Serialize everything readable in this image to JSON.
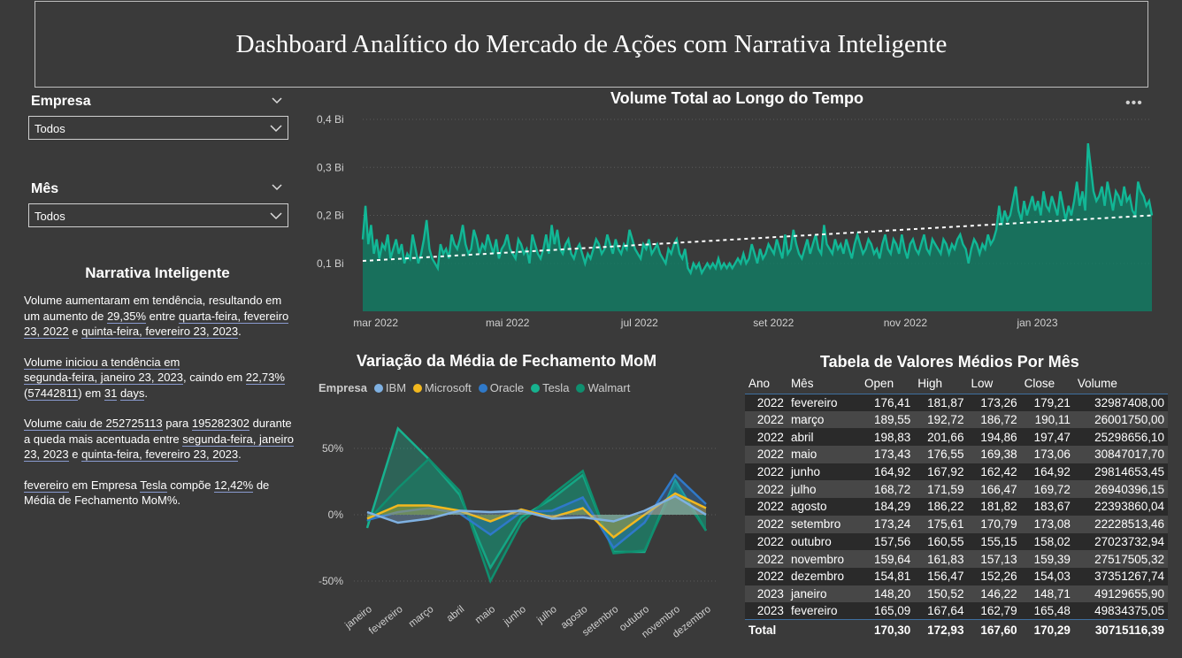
{
  "header": {
    "title": "Dashboard Analítico do Mercado de Ações com Narrativa Inteligente"
  },
  "slicers": [
    {
      "label": "Empresa",
      "value": "Todos"
    },
    {
      "label": "Mês",
      "value": "Todos"
    }
  ],
  "narrative": {
    "title": "Narrativa Inteligente",
    "p1": {
      "a": "Volume aumentaram em tendência, resultando em um aumento de ",
      "pct": "29,35%",
      "b": " entre ",
      "d1": "quarta-feira, fevereiro 23, 2022",
      "c": " e ",
      "d2": "quinta-feira, fevereiro 23, 2023",
      "d": "."
    },
    "p2": {
      "a": "Volume iniciou a tendência em",
      "d1": "segunda-feira, janeiro 23, 2023",
      "b": ", caindo em ",
      "pct": "22,73%",
      "c": " (",
      "abs": "57442811",
      "d": ") em ",
      "n": "31",
      "e": " ",
      "days": "days",
      "f": "."
    },
    "p3": {
      "a": "Volume caiu de ",
      "v1": "252725113",
      "b": " para ",
      "v2": "195282302",
      "c": " durante a queda mais acentuada entre ",
      "d1": "segunda-feira, janeiro 23, 2023",
      "d": " e ",
      "d2": "quinta-feira, fevereiro 23, 2023",
      "e": "."
    },
    "p4": {
      "m": "fevereiro",
      "a": " em Empresa ",
      "co": "Tesla",
      "b": " compõe ",
      "pct": "12,42%",
      "c": " de Média de Fechamento MoM%."
    }
  },
  "colors": {
    "teal": "#12b796",
    "ibm": "#7fb1e2",
    "microsoft": "#f2b81e",
    "oracle": "#2f79c9",
    "tesla": "#17b28f",
    "walmart": "#0f8f6f"
  },
  "chart_data": [
    {
      "type": "area",
      "title": "Volume Total ao Longo do Tempo",
      "x_ticks": [
        "mar 2022",
        "mai 2022",
        "jul 2022",
        "set 2022",
        "nov 2022",
        "jan 2023"
      ],
      "y_ticks": [
        "0,1 Bi",
        "0,2 Bi",
        "0,3 Bi",
        "0,4 Bi"
      ],
      "ylim": [
        0,
        0.4
      ],
      "y_unit": "Bi",
      "x_range": [
        "2022-02-23",
        "2023-02-23"
      ],
      "trend_line": [
        0.105,
        0.2
      ],
      "values": [
        0.15,
        0.22,
        0.14,
        0.18,
        0.12,
        0.15,
        0.11,
        0.14,
        0.13,
        0.16,
        0.11,
        0.13,
        0.15,
        0.12,
        0.14,
        0.1,
        0.12,
        0.11,
        0.16,
        0.13,
        0.1,
        0.12,
        0.15,
        0.19,
        0.13,
        0.11,
        0.1,
        0.09,
        0.14,
        0.12,
        0.13,
        0.11,
        0.16,
        0.14,
        0.13,
        0.15,
        0.18,
        0.14,
        0.12,
        0.13,
        0.17,
        0.15,
        0.12,
        0.14,
        0.13,
        0.16,
        0.14,
        0.12,
        0.15,
        0.11,
        0.13,
        0.14,
        0.16,
        0.13,
        0.12,
        0.11,
        0.15,
        0.14,
        0.12,
        0.13,
        0.1,
        0.16,
        0.14,
        0.12,
        0.11,
        0.13,
        0.16,
        0.12,
        0.18,
        0.14,
        0.17,
        0.13,
        0.12,
        0.14,
        0.15,
        0.12,
        0.11,
        0.13,
        0.14,
        0.12,
        0.1,
        0.12,
        0.11,
        0.13,
        0.15,
        0.14,
        0.12,
        0.13,
        0.16,
        0.14,
        0.12,
        0.15,
        0.13,
        0.12,
        0.14,
        0.13,
        0.17,
        0.15,
        0.13,
        0.12,
        0.11,
        0.14,
        0.13,
        0.15,
        0.12,
        0.13,
        0.14,
        0.12,
        0.11,
        0.1,
        0.13,
        0.12,
        0.14,
        0.15,
        0.12,
        0.11,
        0.13,
        0.09,
        0.08,
        0.1,
        0.09,
        0.1,
        0.08,
        0.09,
        0.1,
        0.09,
        0.1,
        0.09,
        0.11,
        0.09,
        0.1,
        0.09,
        0.1,
        0.09,
        0.1,
        0.11,
        0.1,
        0.12,
        0.1,
        0.11,
        0.14,
        0.12,
        0.1,
        0.13,
        0.11,
        0.12,
        0.14,
        0.13,
        0.12,
        0.15,
        0.13,
        0.11,
        0.16,
        0.12,
        0.13,
        0.17,
        0.14,
        0.12,
        0.11,
        0.13,
        0.15,
        0.12,
        0.14,
        0.16,
        0.13,
        0.12,
        0.18,
        0.14,
        0.13,
        0.12,
        0.15,
        0.13,
        0.14,
        0.12,
        0.15,
        0.13,
        0.11,
        0.14,
        0.16,
        0.14,
        0.12,
        0.13,
        0.15,
        0.14,
        0.12,
        0.13,
        0.11,
        0.14,
        0.16,
        0.13,
        0.12,
        0.15,
        0.14,
        0.12,
        0.16,
        0.13,
        0.11,
        0.14,
        0.15,
        0.13,
        0.12,
        0.14,
        0.16,
        0.13,
        0.12,
        0.15,
        0.14,
        0.13,
        0.12,
        0.15,
        0.14,
        0.12,
        0.14,
        0.13,
        0.15,
        0.16,
        0.14,
        0.13,
        0.1,
        0.13,
        0.15,
        0.14,
        0.12,
        0.14,
        0.13,
        0.16,
        0.14,
        0.15,
        0.17,
        0.22,
        0.18,
        0.21,
        0.19,
        0.2,
        0.23,
        0.26,
        0.21,
        0.19,
        0.23,
        0.2,
        0.22,
        0.24,
        0.21,
        0.23,
        0.2,
        0.25,
        0.22,
        0.21,
        0.24,
        0.22,
        0.2,
        0.25,
        0.22,
        0.19,
        0.22,
        0.2,
        0.23,
        0.27,
        0.22,
        0.25,
        0.21,
        0.35,
        0.3,
        0.25,
        0.23,
        0.24,
        0.26,
        0.22,
        0.27,
        0.24,
        0.21,
        0.25,
        0.24,
        0.22,
        0.26,
        0.23,
        0.24,
        0.21,
        0.2,
        0.27,
        0.25,
        0.24,
        0.22,
        0.23,
        0.2
      ]
    },
    {
      "type": "area",
      "title": "Variação da Média de Fechamento MoM",
      "legend_title": "Empresa",
      "categories": [
        "janeiro",
        "fevereiro",
        "março",
        "abril",
        "maio",
        "junho",
        "julho",
        "agosto",
        "setembro",
        "outubro",
        "novembro",
        "dezembro"
      ],
      "y_ticks": [
        "50%",
        "0%",
        "-50%"
      ],
      "ylim": [
        -0.62,
        0.68
      ],
      "series": [
        {
          "name": "IBM",
          "values": [
            0.02,
            -0.06,
            -0.03,
            0.03,
            0.02,
            0.03,
            -0.03,
            -0.02,
            -0.05,
            0.03,
            0.14,
            0.0
          ]
        },
        {
          "name": "Microsoft",
          "values": [
            -0.03,
            0.07,
            0.07,
            0.03,
            -0.05,
            0.04,
            -0.02,
            0.05,
            -0.17,
            0.0,
            0.16,
            0.05
          ]
        },
        {
          "name": "Oracle",
          "values": [
            -0.04,
            0.02,
            0.05,
            0.01,
            -0.15,
            0.02,
            0.03,
            0.13,
            -0.25,
            -0.06,
            0.3,
            0.08
          ]
        },
        {
          "name": "Tesla",
          "values": [
            -0.1,
            0.65,
            0.42,
            0.15,
            -0.4,
            -0.02,
            0.12,
            0.3,
            -0.28,
            -0.28,
            0.26,
            -0.12
          ]
        },
        {
          "name": "Walmart",
          "values": [
            -0.05,
            0.2,
            0.42,
            0.18,
            -0.5,
            -0.06,
            0.15,
            0.33,
            -0.29,
            -0.27,
            0.23,
            -0.12
          ]
        }
      ]
    },
    {
      "type": "table",
      "title": "Tabela de Valores Médios Por Mês",
      "columns": [
        "Ano",
        "Mês",
        "Open",
        "High",
        "Low",
        "Close",
        "Volume"
      ],
      "rows": [
        [
          "2022",
          "fevereiro",
          "176,41",
          "181,87",
          "173,26",
          "179,21",
          "32987408,00"
        ],
        [
          "2022",
          "março",
          "189,55",
          "192,72",
          "186,72",
          "190,11",
          "26001750,00"
        ],
        [
          "2022",
          "abril",
          "198,83",
          "201,66",
          "194,86",
          "197,47",
          "25298656,10"
        ],
        [
          "2022",
          "maio",
          "173,43",
          "176,55",
          "169,38",
          "173,06",
          "30847017,70"
        ],
        [
          "2022",
          "junho",
          "164,92",
          "167,92",
          "162,42",
          "164,92",
          "29814653,45"
        ],
        [
          "2022",
          "julho",
          "168,72",
          "171,59",
          "166,47",
          "169,72",
          "26940396,15"
        ],
        [
          "2022",
          "agosto",
          "184,29",
          "186,22",
          "181,82",
          "183,67",
          "22393860,04"
        ],
        [
          "2022",
          "setembro",
          "173,24",
          "175,61",
          "170,79",
          "173,08",
          "22228513,46"
        ],
        [
          "2022",
          "outubro",
          "157,56",
          "160,55",
          "155,15",
          "158,02",
          "27023732,94"
        ],
        [
          "2022",
          "novembro",
          "159,64",
          "161,83",
          "157,13",
          "159,39",
          "27517505,32"
        ],
        [
          "2022",
          "dezembro",
          "154,81",
          "156,47",
          "152,26",
          "154,03",
          "37351267,74"
        ],
        [
          "2023",
          "janeiro",
          "148,20",
          "150,52",
          "146,22",
          "148,71",
          "49129655,90"
        ],
        [
          "2023",
          "fevereiro",
          "165,09",
          "167,64",
          "162,79",
          "165,48",
          "49834375,05"
        ]
      ],
      "total": [
        "Total",
        "",
        "170,30",
        "172,93",
        "167,60",
        "170,29",
        "30715116,39"
      ]
    }
  ]
}
